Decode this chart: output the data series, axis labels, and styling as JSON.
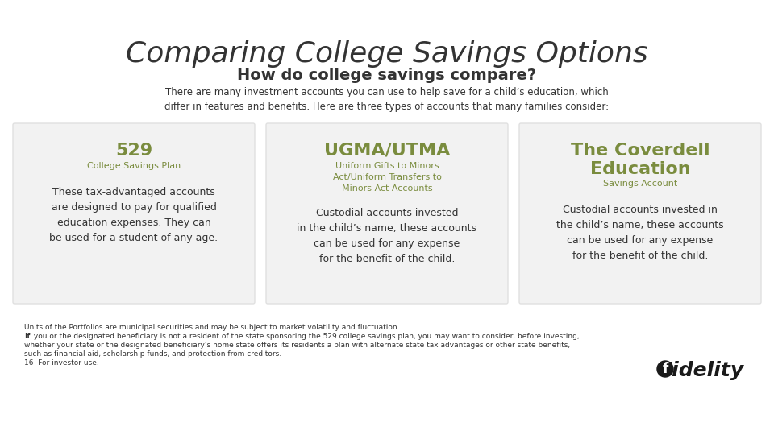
{
  "bg_color": "#ffffff",
  "title": "Comparing College Savings Options",
  "subtitle": "How do college savings compare?",
  "intro_text": "There are many investment accounts you can use to help save for a child’s education, which\ndiffer in features and benefits. Here are three types of accounts that many families consider:",
  "card_bg": "#f2f2f2",
  "card_border": "#e0e0e0",
  "olive_color": "#7a8c3e",
  "dark_text": "#333333",
  "light_text": "#555555",
  "cards": [
    {
      "title": "529",
      "subtitle": "College Savings Plan",
      "body": "These tax-advantaged accounts\nare designed to pay for qualified\neducation expenses. They can\nbe used for a student of any age."
    },
    {
      "title": "UGMA/UTMA",
      "subtitle": "Uniform Gifts to Minors\nAct/Uniform Transfers to\nMinors Act Accounts",
      "body": "Custodial accounts invested\nin the child’s name, these accounts\ncan be used for any expense\nfor the benefit of the child."
    },
    {
      "title": "The Coverdell\nEducation",
      "subtitle": "Savings Account",
      "body": "Custodial accounts invested in\nthe child’s name, these accounts\ncan be used for any expense\nfor the benefit of the child."
    }
  ],
  "footnote_line1": "Units of the Portfolios are municipal securities and may be subject to market volatility and fluctuation.",
  "footnote_line2": "If you or the designated beneficiary is not a resident of the state sponsoring the 529 college savings plan, you may want to consider, before investing,",
  "footnote_line3": "whether your state or the designated beneficiary’s home state offers its residents a plan with alternate state tax advantages or other state benefits,",
  "footnote_line4": "such as financial aid, scholarship funds, and protection from creditors.",
  "footnote_line5": "16  For investor use."
}
